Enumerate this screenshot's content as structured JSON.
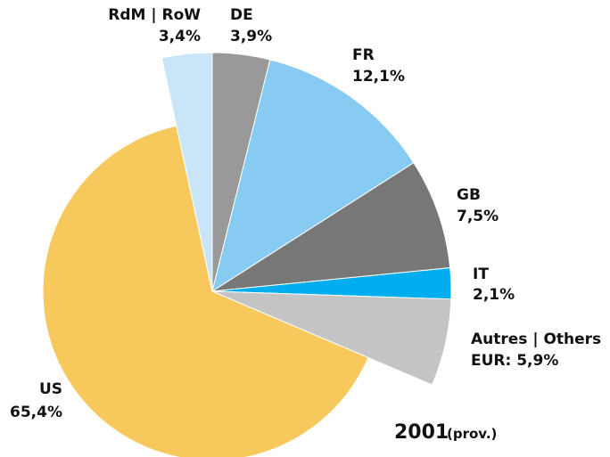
{
  "chart_data": {
    "type": "pie",
    "title": "2001",
    "subtitle": "(prov.)",
    "categories": [
      "DE",
      "FR",
      "GB",
      "IT",
      "Autres | Others",
      "US",
      "RdM | RoW"
    ],
    "values": [
      3.9,
      12.1,
      7.5,
      2.1,
      5.9,
      65.4,
      3.4
    ],
    "value_labels": [
      "3,9%",
      "12,1%",
      "7,5%",
      "2,1%",
      "EUR: 5,9%",
      "65,4%",
      "3,4%"
    ],
    "colors": [
      "#999999",
      "#88cbf2",
      "#777777",
      "#00aeef",
      "#c4c4c4",
      "#f7c95c",
      "#c9e5f8"
    ]
  }
}
